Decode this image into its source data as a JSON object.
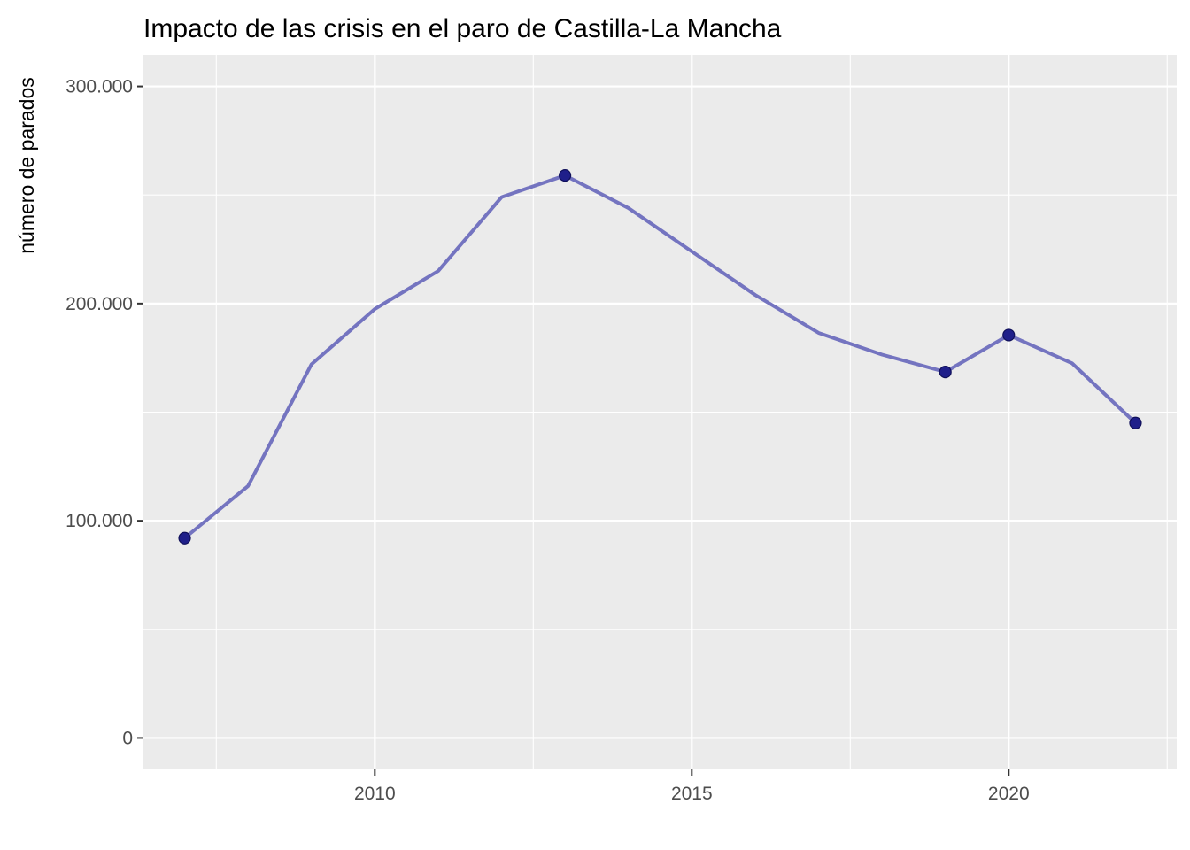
{
  "chart_data": {
    "type": "line",
    "title": "Impacto de las crisis en el paro de Castilla-La Mancha",
    "xlabel": "",
    "ylabel": "número de parados",
    "xlim": [
      2006.35,
      2022.65
    ],
    "ylim": [
      -14500,
      314500
    ],
    "x_ticks": [
      2010,
      2015,
      2020
    ],
    "x_tick_labels": [
      "2010",
      "2015",
      "2020"
    ],
    "y_ticks": [
      0,
      100000,
      200000,
      300000
    ],
    "y_tick_labels": [
      "0",
      "100.000",
      "200.000",
      "300.000"
    ],
    "grid": true,
    "background": "#ebebeb",
    "line_color": "#7474c0",
    "point_color": "#1f1f8a",
    "series": [
      {
        "x": [
          2007,
          2008,
          2009,
          2010,
          2011,
          2012,
          2013,
          2014,
          2015,
          2016,
          2017,
          2018,
          2019,
          2020,
          2021,
          2022
        ],
        "values": [
          92000,
          116000,
          172000,
          197500,
          215000,
          249000,
          259000,
          244000,
          224000,
          204000,
          186500,
          176500,
          168500,
          185500,
          172500,
          145000
        ]
      }
    ],
    "highlighted_points": [
      {
        "x": 2007,
        "y": 92000
      },
      {
        "x": 2013,
        "y": 259000
      },
      {
        "x": 2019,
        "y": 168500
      },
      {
        "x": 2020,
        "y": 185500
      },
      {
        "x": 2022,
        "y": 145000
      }
    ]
  }
}
